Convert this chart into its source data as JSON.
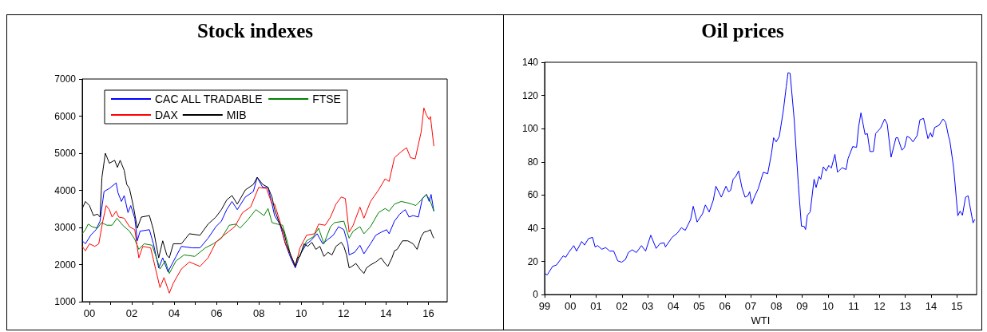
{
  "chart_data": [
    {
      "type": "line",
      "title": "Stock indexes",
      "legend": "top",
      "marker": "none",
      "line_style": "solid",
      "xlim": [
        1999.66,
        2016.89
      ],
      "xticks": [
        {
          "value": 2000,
          "label": "00"
        },
        {
          "value": 2001,
          "label": null
        },
        {
          "value": 2002,
          "label": "02"
        },
        {
          "value": 2003,
          "label": null
        },
        {
          "value": 2004,
          "label": "04"
        },
        {
          "value": 2005,
          "label": null
        },
        {
          "value": 2006,
          "label": "06"
        },
        {
          "value": 2007,
          "label": null
        },
        {
          "value": 2008,
          "label": "08"
        },
        {
          "value": 2009,
          "label": null
        },
        {
          "value": 2010,
          "label": "10"
        },
        {
          "value": 2011,
          "label": null
        },
        {
          "value": 2012,
          "label": "12"
        },
        {
          "value": 2013,
          "label": null
        },
        {
          "value": 2014,
          "label": "14"
        },
        {
          "value": 2015,
          "label": null
        },
        {
          "value": 2016,
          "label": "16"
        }
      ],
      "ylim": [
        1000,
        7000
      ],
      "yticks": [
        1000,
        2000,
        3000,
        4000,
        5000,
        6000,
        7000
      ],
      "series": [
        {
          "name": "CAC ALL TRADABLE",
          "color": "#0000ff",
          "x": [
            1999.66,
            1999.81,
            2000.06,
            2000.31,
            2000.5,
            2000.69,
            2000.94,
            2001.26,
            2001.35,
            2001.51,
            2001.64,
            2001.82,
            2001.95,
            2002.14,
            2002.26,
            2002.39,
            2002.83,
            2003.02,
            2003.27,
            2003.46,
            2003.71,
            2003.84,
            2004.09,
            2004.34,
            2004.84,
            2005.22,
            2005.6,
            2005.97,
            2006.23,
            2006.48,
            2006.73,
            2006.98,
            2007.36,
            2007.74,
            2007.92,
            2008.18,
            2008.43,
            2008.62,
            2008.74,
            2008.99,
            2009.25,
            2009.5,
            2009.72,
            2009.94,
            2010.25,
            2010.44,
            2010.75,
            2011.01,
            2011.26,
            2011.51,
            2011.76,
            2012.01,
            2012.2,
            2012.26,
            2012.52,
            2012.77,
            2012.96,
            2013.27,
            2013.52,
            2013.77,
            2014.03,
            2014.15,
            2014.4,
            2014.65,
            2014.91,
            2015.09,
            2015.28,
            2015.53,
            2015.72,
            2015.91,
            2016.04,
            2016.13,
            2016.26
          ],
          "values": [
            2640,
            2560,
            2790,
            2940,
            3170,
            3970,
            4050,
            4200,
            3930,
            3700,
            3860,
            3400,
            3590,
            3250,
            2640,
            2900,
            2940,
            2560,
            1910,
            2180,
            1800,
            1950,
            2220,
            2490,
            2450,
            2450,
            2710,
            3020,
            3170,
            3480,
            3700,
            3480,
            3820,
            3970,
            4350,
            4080,
            4080,
            3630,
            3320,
            3090,
            2560,
            2180,
            1910,
            2260,
            2560,
            2640,
            2830,
            2560,
            2680,
            2790,
            3020,
            2940,
            2560,
            2260,
            2330,
            2520,
            2290,
            2560,
            2790,
            2870,
            2940,
            2830,
            3170,
            3360,
            3480,
            3280,
            3320,
            3280,
            3780,
            3890,
            3700,
            3890,
            3440
          ]
        },
        {
          "name": "FTSE",
          "color": "#008000",
          "x": [
            1999.66,
            1999.81,
            1999.94,
            2000.13,
            2000.38,
            2000.57,
            2000.82,
            2001.07,
            2001.3,
            2001.57,
            2001.89,
            2002.14,
            2002.33,
            2002.58,
            2002.96,
            2003.21,
            2003.33,
            2003.58,
            2003.77,
            2004.09,
            2004.47,
            2004.97,
            2005.47,
            2005.85,
            2006.23,
            2006.6,
            2006.92,
            2007.11,
            2007.48,
            2007.86,
            2008.24,
            2008.43,
            2008.62,
            2008.87,
            2009.12,
            2009.37,
            2009.5,
            2009.72,
            2009.94,
            2010.25,
            2010.57,
            2010.82,
            2011.07,
            2011.38,
            2011.57,
            2012.01,
            2012.26,
            2012.45,
            2012.77,
            2012.96,
            2013.27,
            2013.65,
            2013.96,
            2014.15,
            2014.4,
            2014.72,
            2014.97,
            2015.22,
            2015.41,
            2015.66,
            2015.91,
            2016.1,
            2016.26
          ],
          "values": [
            2830,
            2940,
            3090,
            3020,
            2980,
            3130,
            3060,
            3060,
            3250,
            3060,
            2900,
            2680,
            2410,
            2560,
            2520,
            2100,
            1880,
            2100,
            1760,
            2100,
            2260,
            2220,
            2450,
            2560,
            2710,
            3060,
            3090,
            2980,
            3210,
            3480,
            3320,
            3510,
            3130,
            3090,
            3060,
            2560,
            2220,
            1990,
            2260,
            2640,
            2750,
            2980,
            2560,
            3020,
            3130,
            3170,
            2710,
            2900,
            3020,
            2830,
            3020,
            3400,
            3510,
            3440,
            3630,
            3700,
            3670,
            3630,
            3590,
            3740,
            3890,
            3700,
            3440
          ]
        },
        {
          "name": "DAX",
          "color": "#ff0000",
          "x": [
            1999.66,
            1999.81,
            2000.0,
            2000.25,
            2000.44,
            2000.63,
            2000.79,
            2000.94,
            2001.07,
            2001.26,
            2001.38,
            2001.64,
            2001.89,
            2002.14,
            2002.33,
            2002.52,
            2002.89,
            2003.14,
            2003.33,
            2003.52,
            2003.77,
            2003.96,
            2004.34,
            2004.72,
            2005.22,
            2005.6,
            2005.97,
            2006.35,
            2006.86,
            2007.23,
            2007.61,
            2007.99,
            2008.36,
            2008.62,
            2008.74,
            2008.99,
            2009.25,
            2009.5,
            2009.72,
            2009.94,
            2010.25,
            2010.63,
            2010.82,
            2011.13,
            2011.38,
            2011.64,
            2011.89,
            2012.08,
            2012.26,
            2012.45,
            2012.77,
            2012.96,
            2013.27,
            2013.65,
            2013.96,
            2014.15,
            2014.4,
            2014.72,
            2014.97,
            2015.16,
            2015.38,
            2015.66,
            2015.79,
            2015.91,
            2016.04,
            2016.1,
            2016.26
          ],
          "values": [
            2490,
            2370,
            2560,
            2490,
            2560,
            3170,
            3590,
            3480,
            3280,
            3440,
            3280,
            3250,
            3020,
            2940,
            2180,
            2490,
            2450,
            1840,
            1380,
            1650,
            1230,
            1500,
            1880,
            2070,
            1950,
            2180,
            2600,
            2790,
            3020,
            3400,
            3550,
            4080,
            4050,
            3630,
            3630,
            3170,
            2560,
            2260,
            1950,
            2450,
            2790,
            2830,
            3090,
            3060,
            3280,
            3630,
            3820,
            3780,
            2870,
            3060,
            3550,
            3250,
            3700,
            4010,
            4310,
            4240,
            4880,
            5040,
            5150,
            4880,
            4850,
            5570,
            6220,
            6030,
            5910,
            5990,
            5190
          ]
        },
        {
          "name": "MIB",
          "color": "#000000",
          "x": [
            1999.66,
            1999.81,
            2000.0,
            2000.19,
            2000.38,
            2000.5,
            2000.59,
            2000.75,
            2000.94,
            2001.19,
            2001.32,
            2001.45,
            2001.64,
            2001.76,
            2001.89,
            2002.08,
            2002.26,
            2002.45,
            2002.83,
            2003.02,
            2003.27,
            2003.46,
            2003.65,
            2003.77,
            2003.96,
            2004.34,
            2004.72,
            2005.22,
            2005.6,
            2005.97,
            2006.23,
            2006.48,
            2006.73,
            2006.98,
            2007.36,
            2007.74,
            2007.92,
            2008.18,
            2008.43,
            2008.62,
            2008.74,
            2008.99,
            2009.18,
            2009.31,
            2009.5,
            2009.72,
            2009.81,
            2009.94,
            2010.13,
            2010.31,
            2010.5,
            2010.69,
            2010.88,
            2011.07,
            2011.26,
            2011.45,
            2011.64,
            2011.89,
            2012.01,
            2012.14,
            2012.26,
            2012.39,
            2012.58,
            2012.77,
            2012.96,
            2013.08,
            2013.27,
            2013.52,
            2013.77,
            2013.96,
            2014.09,
            2014.28,
            2014.4,
            2014.53,
            2014.78,
            2015.03,
            2015.28,
            2015.47,
            2015.66,
            2015.79,
            2015.97,
            2016.1,
            2016.19,
            2016.26
          ],
          "values": [
            3510,
            3700,
            3590,
            3320,
            3360,
            3280,
            4350,
            5000,
            4730,
            4810,
            4620,
            4810,
            4540,
            4160,
            4050,
            3550,
            2980,
            3280,
            3320,
            2940,
            2180,
            2640,
            2260,
            2180,
            2560,
            2560,
            2830,
            2790,
            3090,
            3280,
            3480,
            3740,
            3860,
            3630,
            4010,
            4160,
            4350,
            4160,
            4080,
            3820,
            3480,
            3090,
            2870,
            2560,
            2260,
            1950,
            2180,
            2220,
            2560,
            2490,
            2600,
            2410,
            2490,
            2220,
            2330,
            2260,
            2490,
            2600,
            2490,
            2260,
            1910,
            1950,
            2030,
            1880,
            1760,
            1910,
            1990,
            2070,
            2180,
            2030,
            1950,
            2180,
            2370,
            2410,
            2640,
            2640,
            2560,
            2410,
            2750,
            2870,
            2900,
            2940,
            2790,
            2710
          ]
        }
      ]
    },
    {
      "type": "line",
      "title": "Oil prices",
      "xlabel": "WTI",
      "marker": "none",
      "line_style": "solid",
      "xlim": [
        1999,
        2015.77
      ],
      "xticks": [
        {
          "value": 1999,
          "label": "99"
        },
        {
          "value": 2000,
          "label": "00"
        },
        {
          "value": 2001,
          "label": "01"
        },
        {
          "value": 2002,
          "label": "02"
        },
        {
          "value": 2003,
          "label": "03"
        },
        {
          "value": 2004,
          "label": "04"
        },
        {
          "value": 2005,
          "label": "05"
        },
        {
          "value": 2006,
          "label": "06"
        },
        {
          "value": 2007,
          "label": "07"
        },
        {
          "value": 2008,
          "label": "08"
        },
        {
          "value": 2009,
          "label": "09"
        },
        {
          "value": 2010,
          "label": "10"
        },
        {
          "value": 2011,
          "label": "11"
        },
        {
          "value": 2012,
          "label": "12"
        },
        {
          "value": 2013,
          "label": "13"
        },
        {
          "value": 2014,
          "label": "14"
        },
        {
          "value": 2015,
          "label": "15"
        }
      ],
      "ylim": [
        0,
        140
      ],
      "yticks": [
        0,
        20,
        40,
        60,
        80,
        100,
        120,
        140
      ],
      "series": [
        {
          "color": "#0000ff",
          "x": [
            1999.03,
            1999.1,
            1999.31,
            1999.46,
            1999.72,
            1999.82,
            1999.93,
            2000.13,
            2000.24,
            2000.44,
            2000.55,
            2000.7,
            2000.86,
            2000.96,
            2001.06,
            2001.22,
            2001.37,
            2001.53,
            2001.68,
            2001.84,
            2001.99,
            2002.14,
            2002.25,
            2002.4,
            2002.56,
            2002.76,
            2002.92,
            2003.12,
            2003.33,
            2003.48,
            2003.64,
            2003.69,
            2003.95,
            2004.15,
            2004.31,
            2004.46,
            2004.67,
            2004.77,
            2004.92,
            2005.13,
            2005.24,
            2005.39,
            2005.55,
            2005.65,
            2005.86,
            2006.04,
            2006.14,
            2006.22,
            2006.32,
            2006.42,
            2006.53,
            2006.66,
            2006.78,
            2006.89,
            2006.96,
            2007.04,
            2007.14,
            2007.29,
            2007.49,
            2007.66,
            2007.81,
            2007.89,
            2007.99,
            2008.11,
            2008.27,
            2008.38,
            2008.45,
            2008.53,
            2008.69,
            2008.85,
            2008.97,
            2009.07,
            2009.13,
            2009.2,
            2009.31,
            2009.46,
            2009.54,
            2009.65,
            2009.72,
            2009.82,
            2009.93,
            2010.03,
            2010.13,
            2010.27,
            2010.37,
            2010.55,
            2010.7,
            2010.78,
            2010.96,
            2011.11,
            2011.19,
            2011.28,
            2011.44,
            2011.53,
            2011.63,
            2011.76,
            2011.85,
            2012.04,
            2012.2,
            2012.3,
            2012.45,
            2012.64,
            2012.71,
            2012.87,
            2012.97,
            2013.07,
            2013.18,
            2013.3,
            2013.46,
            2013.57,
            2013.71,
            2013.88,
            2013.98,
            2014.05,
            2014.14,
            2014.31,
            2014.47,
            2014.57,
            2014.68,
            2014.73,
            2014.88,
            2015.04,
            2015.13,
            2015.22,
            2015.34,
            2015.44,
            2015.63,
            2015.7
          ],
          "values": [
            12.5,
            11.8,
            17,
            17.8,
            23.3,
            22.5,
            25.3,
            29.5,
            26.2,
            32,
            29.8,
            33.7,
            34.5,
            28.7,
            29.5,
            27.3,
            28.3,
            26.2,
            26.2,
            20.3,
            19.5,
            21.2,
            25.3,
            27,
            25.3,
            29.5,
            26.2,
            35.8,
            27.8,
            30.8,
            31.2,
            28.7,
            34.5,
            37,
            40.3,
            38.7,
            45.3,
            53.2,
            43.7,
            48.7,
            54,
            49.8,
            57,
            65.3,
            58.7,
            65.3,
            62,
            62.8,
            69.5,
            71.2,
            74.5,
            64.5,
            58.7,
            59.5,
            62,
            54.5,
            58.7,
            63.7,
            73.7,
            72.8,
            85.3,
            94.5,
            92,
            95.3,
            111.2,
            125.3,
            133.7,
            133.3,
            105.3,
            66.2,
            41.2,
            41.2,
            39.2,
            47.8,
            49.8,
            69.5,
            64.5,
            71.2,
            69.5,
            77,
            74.5,
            77.8,
            76.2,
            84.5,
            73.7,
            76.5,
            75.3,
            82,
            89.2,
            88.7,
            101.2,
            109.5,
            96.5,
            97,
            86.2,
            86.2,
            97,
            100.3,
            105.8,
            102.8,
            82.8,
            94.5,
            94.5,
            87,
            88.7,
            95.3,
            94.5,
            92,
            95.8,
            105.3,
            106.2,
            94,
            97.5,
            94.8,
            100.7,
            102,
            105.8,
            103.7,
            95.3,
            92.8,
            76.2,
            47.5,
            50.3,
            47.8,
            58.7,
            59.5,
            43.2,
            45.3
          ]
        }
      ]
    }
  ]
}
